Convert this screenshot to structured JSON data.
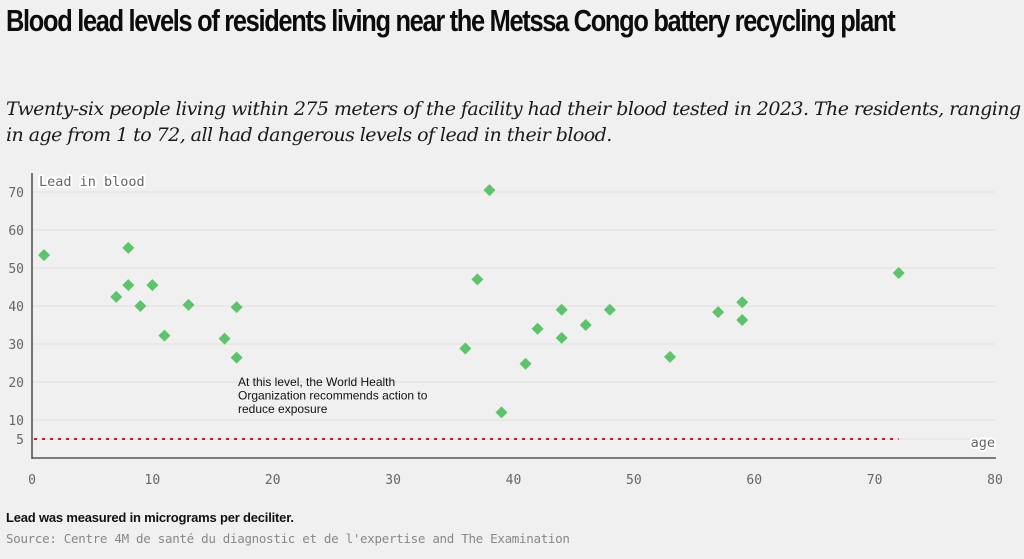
{
  "header": {
    "title": "Blood lead levels of residents living near the Metssa Congo battery recycling plant",
    "subtitle": "Twenty-six people living within 275 meters of the facility had their blood tested in 2023. The residents, ranging in age from 1 to 72, all had dangerous levels of lead in their blood."
  },
  "footer": {
    "note": "Lead was measured in micrograms per deciliter.",
    "source": "Source: Centre 4M de santé du diagnostic et de l'expertise and The Examination"
  },
  "colors": {
    "point": "#5cc46a",
    "threshold": "#c0221e",
    "axis": "#555555",
    "grid": "#e4e4e4",
    "background": "#f0f0f0"
  },
  "chart_data": {
    "type": "scatter",
    "title": "Blood lead levels of residents living near the Metssa Congo battery recycling plant",
    "xlabel": "age",
    "ylabel": "Lead in blood",
    "xlim": [
      0,
      80
    ],
    "ylim": [
      0,
      72
    ],
    "x_ticks": [
      0,
      10,
      20,
      30,
      40,
      50,
      60,
      70,
      80
    ],
    "y_ticks": [
      5,
      10,
      20,
      30,
      40,
      50,
      60,
      70
    ],
    "grid": true,
    "marker": "diamond",
    "threshold": {
      "value": 5,
      "x_range": [
        0,
        72
      ],
      "annotation": [
        "At this level, the World Health",
        "Organization recommends action to",
        "reduce exposure"
      ]
    },
    "points": [
      {
        "x": 1,
        "y": 53.4
      },
      {
        "x": 7,
        "y": 42.4
      },
      {
        "x": 8,
        "y": 55.3
      },
      {
        "x": 8,
        "y": 45.5
      },
      {
        "x": 9,
        "y": 40.0
      },
      {
        "x": 10,
        "y": 45.5
      },
      {
        "x": 11,
        "y": 32.2
      },
      {
        "x": 13,
        "y": 40.3
      },
      {
        "x": 16,
        "y": 31.4
      },
      {
        "x": 17,
        "y": 39.7
      },
      {
        "x": 17,
        "y": 26.4
      },
      {
        "x": 36,
        "y": 28.8
      },
      {
        "x": 37,
        "y": 47.0
      },
      {
        "x": 38,
        "y": 70.5
      },
      {
        "x": 39,
        "y": 12.0
      },
      {
        "x": 41,
        "y": 24.8
      },
      {
        "x": 42,
        "y": 34.0
      },
      {
        "x": 44,
        "y": 39.0
      },
      {
        "x": 44,
        "y": 31.6
      },
      {
        "x": 46,
        "y": 35.0
      },
      {
        "x": 48,
        "y": 39.0
      },
      {
        "x": 53,
        "y": 26.6
      },
      {
        "x": 57,
        "y": 38.4
      },
      {
        "x": 59,
        "y": 41.0
      },
      {
        "x": 59,
        "y": 36.3
      },
      {
        "x": 72,
        "y": 48.7
      }
    ]
  }
}
